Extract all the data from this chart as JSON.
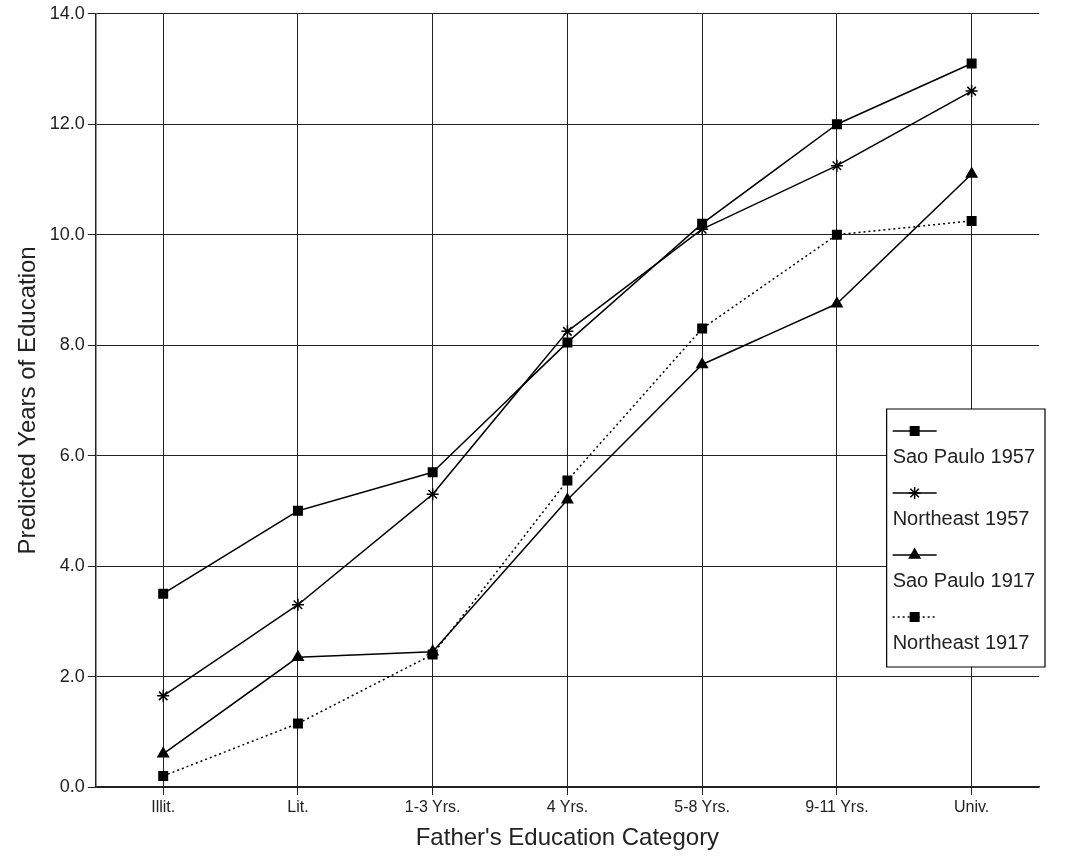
{
  "chart_data": {
    "type": "line",
    "xlabel": "Father's Education Category",
    "ylabel": "Predicted Years of Education",
    "categories": [
      "Illit.",
      "Lit.",
      "1-3 Yrs.",
      "4 Yrs.",
      "5-8 Yrs.",
      "9-11 Yrs.",
      "Univ."
    ],
    "ylim": [
      0,
      14
    ],
    "yticks": [
      {
        "value": 0,
        "label": "0.0"
      },
      {
        "value": 2,
        "label": "2.0"
      },
      {
        "value": 4,
        "label": "4.0"
      },
      {
        "value": 6,
        "label": "6.0"
      },
      {
        "value": 8,
        "label": "8.0"
      },
      {
        "value": 10,
        "label": "10.0"
      },
      {
        "value": 12,
        "label": "12.0"
      },
      {
        "value": 14,
        "label": "14.0"
      }
    ],
    "grid": true,
    "legend": "bottom right",
    "series": [
      {
        "name": "Sao Paulo 1957",
        "color": "#000000",
        "marker": "square",
        "line_style": "solid",
        "values": [
          3.5,
          5.0,
          5.7,
          8.05,
          10.2,
          12.0,
          13.1
        ]
      },
      {
        "name": "Northeast 1957",
        "color": "#000000",
        "marker": "cross",
        "line_style": "solid",
        "values": [
          1.65,
          3.3,
          5.3,
          8.25,
          10.1,
          11.25,
          12.6
        ]
      },
      {
        "name": "Sao Paulo 1917",
        "color": "#000000",
        "marker": "triangle",
        "line_style": "solid",
        "values": [
          0.6,
          2.35,
          2.45,
          5.2,
          7.65,
          8.75,
          11.1
        ]
      },
      {
        "name": "Northeast 1917",
        "color": "#000000",
        "marker": "square",
        "line_style": "dotted",
        "values": [
          0.2,
          1.15,
          2.4,
          5.55,
          8.3,
          10.0,
          10.25
        ]
      }
    ]
  }
}
